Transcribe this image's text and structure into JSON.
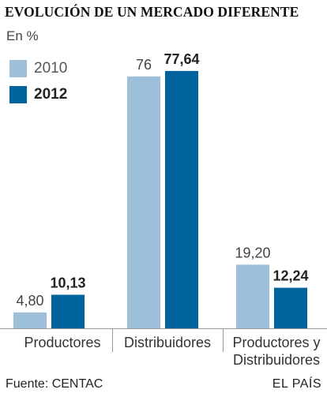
{
  "title": "EVOLUCIÓN DE UN MERCADO DIFERENTE",
  "unit": "En %",
  "source": "Fuente: CENTAC",
  "credit": "EL PAÍS",
  "colors": {
    "series_2010": "#9dbfda",
    "series_2012": "#00639d"
  },
  "chart_data": {
    "type": "bar",
    "categories": [
      [
        "Productores"
      ],
      [
        "Distribuidores"
      ],
      [
        "Productores y",
        "Distribuidores"
      ]
    ],
    "series": [
      {
        "name": "2010",
        "values": [
          4.8,
          76,
          19.2
        ],
        "labels": [
          "4,80",
          "76",
          "19,20"
        ]
      },
      {
        "name": "2012",
        "values": [
          10.13,
          77.64,
          12.24
        ],
        "labels": [
          "10,13",
          "77,64",
          "12,24"
        ]
      }
    ],
    "title": "EVOLUCIÓN DE UN MERCADO DIFERENTE",
    "ylabel": "En %",
    "ylim": [
      0,
      100
    ],
    "grid": false,
    "legend": "top-left"
  }
}
